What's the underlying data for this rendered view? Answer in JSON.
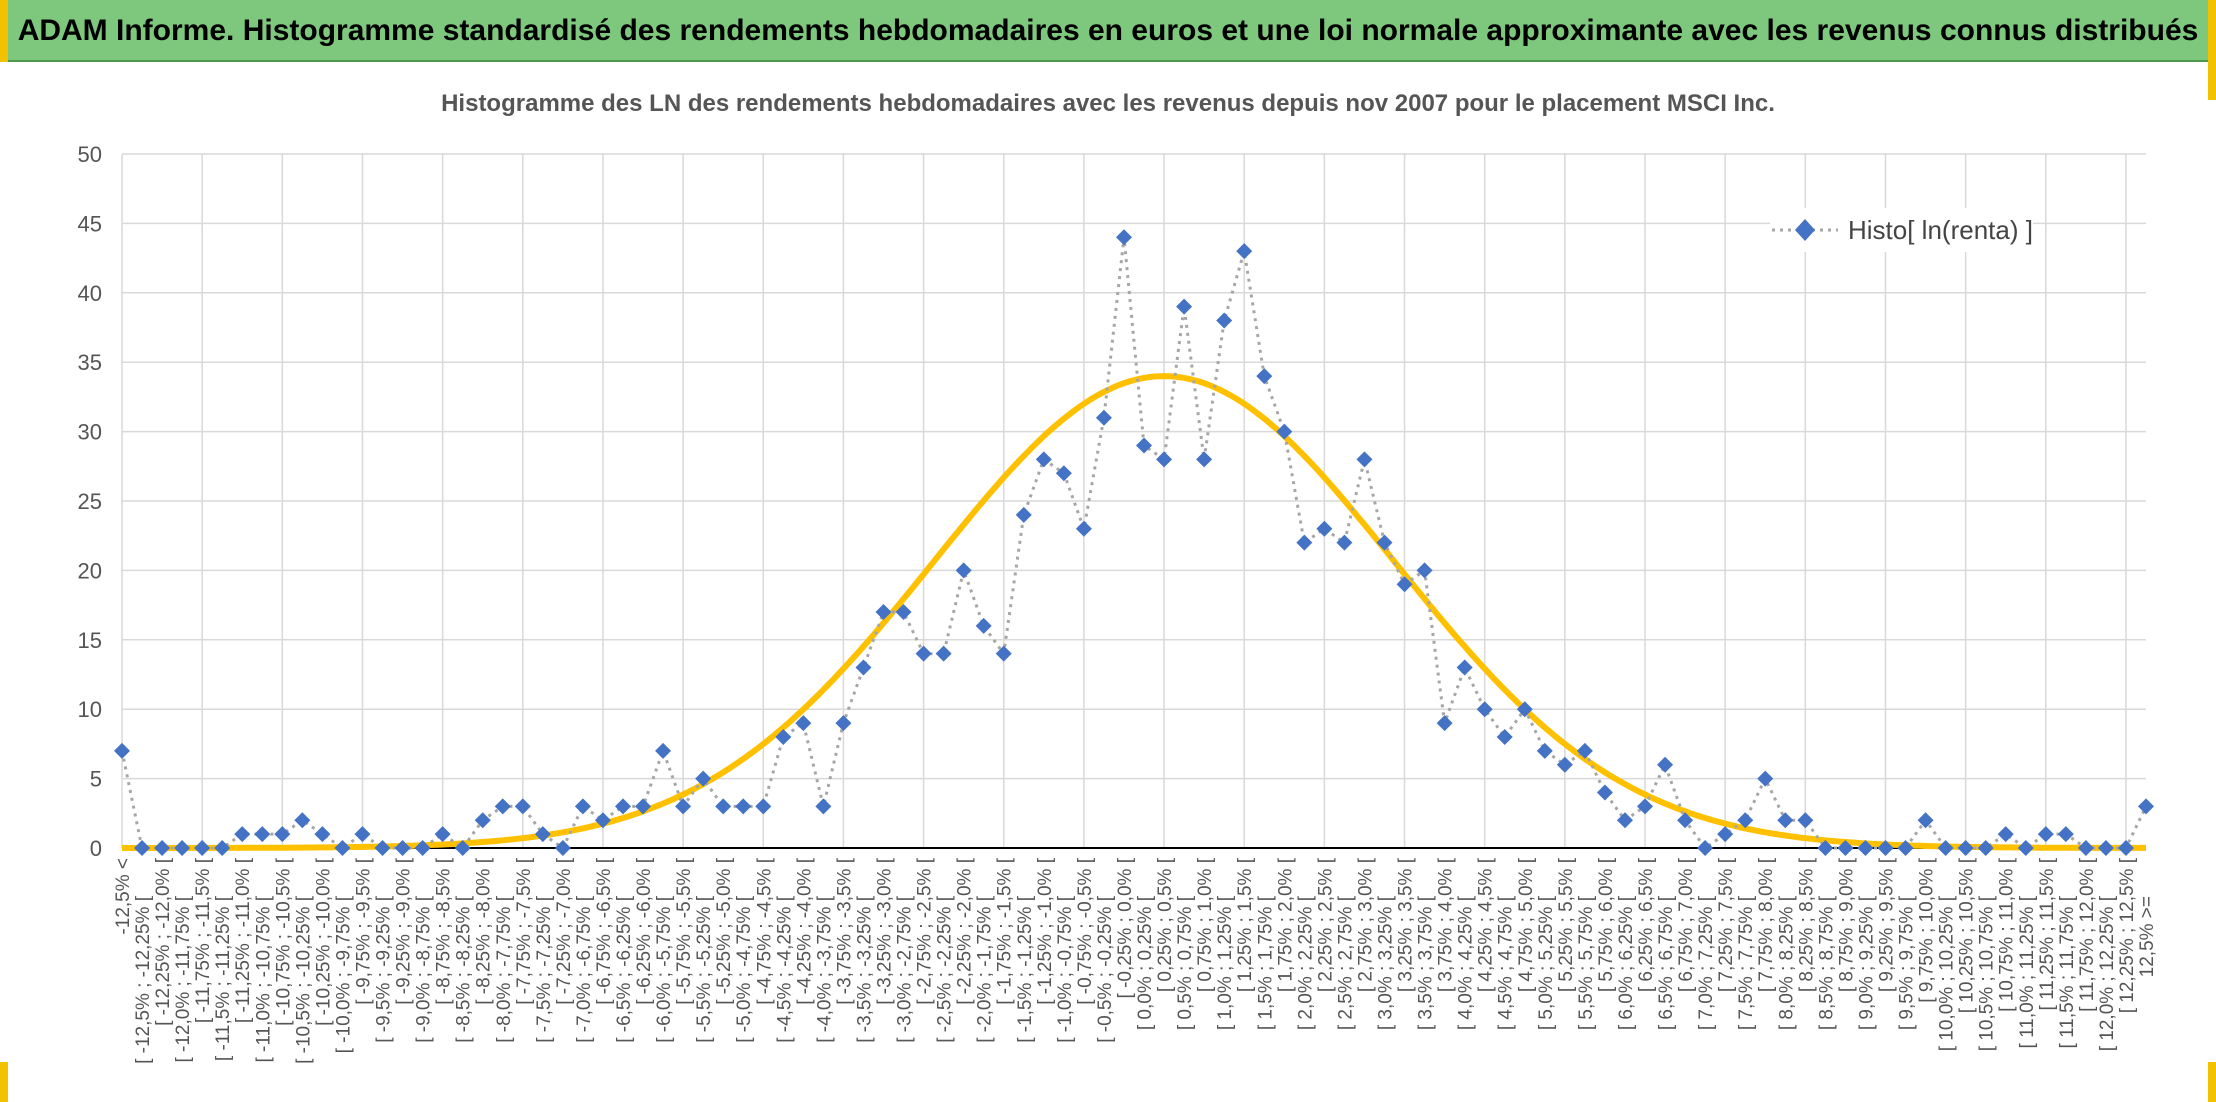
{
  "header": {
    "title": "ADAM Informe. Histogramme standardisé des rendements hebdomadaires en euros et une loi normale approximante avec les revenus connus distribués"
  },
  "colors": {
    "header_bg": "#7ec87e",
    "accent": "#f2c200",
    "marker": "#4472c4",
    "normal_curve": "#ffc000",
    "dotted_line": "#a6a6a6"
  },
  "chart_data": {
    "type": "line",
    "title": "Histogramme des LN des rendements hebdomadaires avec les revenus depuis nov 2007 pour le placement MSCI Inc.",
    "xlabel": "",
    "ylabel": "",
    "ylim": [
      0,
      50
    ],
    "yticks": [
      0,
      5,
      10,
      15,
      20,
      25,
      30,
      35,
      40,
      45,
      50
    ],
    "grid": true,
    "legend_position": "top-right",
    "categories": [
      "-12,5% <",
      "[ -12,5% ; -12,25% [",
      "[ -12,25% ; -12,0% [",
      "[ -12,0% ; -11,75% [",
      "[ -11,75% ; -11,5% [",
      "[ -11,5% ; -11,25% [",
      "[ -11,25% ; -11,0% [",
      "[ -11,0% ; -10,75% [",
      "[ -10,75% ; -10,5% [",
      "[ -10,5% ; -10,25% [",
      "[ -10,25% ; -10,0% [",
      "[ -10,0% ; -9,75% [",
      "[ -9,75% ; -9,5% [",
      "[ -9,5% ; -9,25% [",
      "[ -9,25% ; -9,0% [",
      "[ -9,0% ; -8,75% [",
      "[ -8,75% ; -8,5% [",
      "[ -8,5% ; -8,25% [",
      "[ -8,25% ; -8,0% [",
      "[ -8,0% ; -7,75% [",
      "[ -7,75% ; -7,5% [",
      "[ -7,5% ; -7,25% [",
      "[ -7,25% ; -7,0% [",
      "[ -7,0% ; -6,75% [",
      "[ -6,75% ; -6,5% [",
      "[ -6,5% ; -6,25% [",
      "[ -6,25% ; -6,0% [",
      "[ -6,0% ; -5,75% [",
      "[ -5,75% ; -5,5% [",
      "[ -5,5% ; -5,25% [",
      "[ -5,25% ; -5,0% [",
      "[ -5,0% ; -4,75% [",
      "[ -4,75% ; -4,5% [",
      "[ -4,5% ; -4,25% [",
      "[ -4,25% ; -4,0% [",
      "[ -4,0% ; -3,75% [",
      "[ -3,75% ; -3,5% [",
      "[ -3,5% ; -3,25% [",
      "[ -3,25% ; -3,0% [",
      "[ -3,0% ; -2,75% [",
      "[ -2,75% ; -2,5% [",
      "[ -2,5% ; -2,25% [",
      "[ -2,25% ; -2,0% [",
      "[ -2,0% ; -1,75% [",
      "[ -1,75% ; -1,5% [",
      "[ -1,5% ; -1,25% [",
      "[ -1,25% ; -1,0% [",
      "[ -1,0% ; -0,75% [",
      "[ -0,75% ; -0,5% [",
      "[ -0,5% ; -0,25% [",
      "[ -0,25% ; 0,0% [",
      "[ 0,0% ; 0,25% [",
      "[ 0,25% ; 0,5% [",
      "[ 0,5% ; 0,75% [",
      "[ 0,75% ; 1,0% [",
      "[ 1,0% ; 1,25% [",
      "[ 1,25% ; 1,5% [",
      "[ 1,5% ; 1,75% [",
      "[ 1,75% ; 2,0% [",
      "[ 2,0% ; 2,25% [",
      "[ 2,25% ; 2,5% [",
      "[ 2,5% ; 2,75% [",
      "[ 2,75% ; 3,0% [",
      "[ 3,0% ; 3,25% [",
      "[ 3,25% ; 3,5% [",
      "[ 3,5% ; 3,75% [",
      "[ 3,75% ; 4,0% [",
      "[ 4,0% ; 4,25% [",
      "[ 4,25% ; 4,5% [",
      "[ 4,5% ; 4,75% [",
      "[ 4,75% ; 5,0% [",
      "[ 5,0% ; 5,25% [",
      "[ 5,25% ; 5,5% [",
      "[ 5,5% ; 5,75% [",
      "[ 5,75% ; 6,0% [",
      "[ 6,0% ; 6,25% [",
      "[ 6,25% ; 6,5% [",
      "[ 6,5% ; 6,75% [",
      "[ 6,75% ; 7,0% [",
      "[ 7,0% ; 7,25% [",
      "[ 7,25% ; 7,5% [",
      "[ 7,5% ; 7,75% [",
      "[ 7,75% ; 8,0% [",
      "[ 8,0% ; 8,25% [",
      "[ 8,25% ; 8,5% [",
      "[ 8,5% ; 8,75% [",
      "[ 8,75% ; 9,0% [",
      "[ 9,0% ; 9,25% [",
      "[ 9,25% ; 9,5% [",
      "[ 9,5% ; 9,75% [",
      "[ 9,75% ; 10,0% [",
      "[ 10,0% ; 10,25% [",
      "[ 10,25% ; 10,5% [",
      "[ 10,5% ; 10,75% [",
      "[ 10,75% ; 11,0% [",
      "[ 11,0% ; 11,25% [",
      "[ 11,25% ; 11,5% [",
      "[ 11,5% ; 11,75% [",
      "[ 11,75% ; 12,0% [",
      "[ 12,0% ; 12,25% [",
      "[ 12,25% ; 12,5% [",
      "12,5% >="
    ],
    "series": [
      {
        "name": "Histo[ ln(renta) ]",
        "style": "dotted-line-diamond-markers",
        "values": [
          7,
          0,
          0,
          0,
          0,
          0,
          1,
          1,
          1,
          2,
          1,
          0,
          1,
          0,
          0,
          0,
          1,
          0,
          2,
          3,
          3,
          1,
          0,
          3,
          2,
          3,
          3,
          7,
          3,
          5,
          3,
          3,
          3,
          8,
          9,
          3,
          9,
          13,
          17,
          17,
          14,
          14,
          20,
          16,
          14,
          24,
          28,
          27,
          23,
          31,
          44,
          29,
          28,
          39,
          28,
          38,
          43,
          34,
          30,
          22,
          23,
          22,
          28,
          22,
          19,
          20,
          9,
          13,
          10,
          8,
          10,
          7,
          6,
          7,
          4,
          2,
          3,
          6,
          2,
          0,
          1,
          2,
          5,
          2,
          2,
          0,
          0,
          0,
          0,
          0,
          2,
          0,
          0,
          0,
          1,
          0,
          1,
          1,
          0,
          0,
          0,
          3
        ]
      },
      {
        "name": "",
        "style": "smooth-line",
        "mean_index": 52,
        "peak": 34,
        "sigma_bins": 11.5
      }
    ]
  }
}
